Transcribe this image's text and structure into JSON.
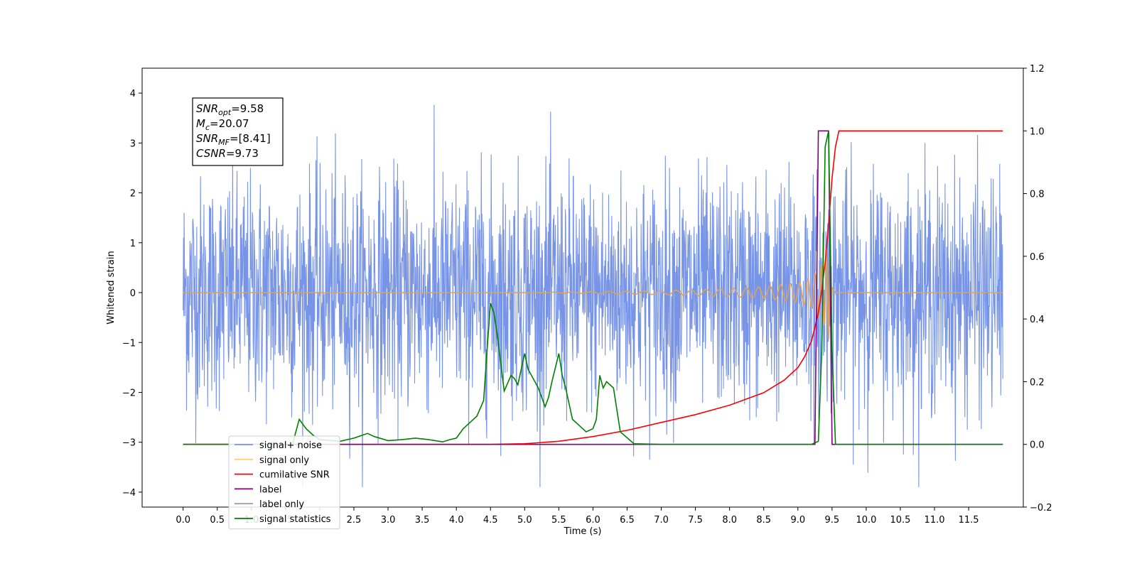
{
  "chart_data": {
    "type": "line",
    "xlabel": "Time (s)",
    "ylabel": "Whitened strain",
    "xlim": [
      -0.6,
      12.3
    ],
    "ylim_left": [
      -4.3,
      4.5
    ],
    "ylim_right": [
      -0.2,
      1.2
    ],
    "x_ticks": [
      "0.0",
      "0.5",
      "1.0",
      "1.5",
      "2.0",
      "2.5",
      "3.0",
      "3.5",
      "4.0",
      "4.5",
      "5.0",
      "5.5",
      "6.0",
      "6.5",
      "7.0",
      "7.5",
      "8.0",
      "8.5",
      "9.0",
      "9.5",
      "10.0",
      "10.5",
      "11.0",
      "11.5"
    ],
    "y_ticks_left": [
      "4",
      "3",
      "2",
      "1",
      "0",
      "−1",
      "−2",
      "−3",
      "−4"
    ],
    "y_ticks_right": [
      "1.2",
      "1.0",
      "0.8",
      "0.6",
      "0.4",
      "0.2",
      "0.0",
      "−0.2"
    ],
    "grid": false,
    "legend_position": "lower-left",
    "annotation": [
      {
        "base": "SNR",
        "sub": "opt",
        "rest": "=9.58"
      },
      {
        "base": "M",
        "sub": "c",
        "rest": "=20.07"
      },
      {
        "base": "SNR",
        "sub": "MF",
        "rest": "=[8.41]"
      },
      {
        "base": "CSNR",
        "sub": "",
        "rest": "=9.73"
      }
    ],
    "legend": [
      {
        "label": "signal+ noise",
        "color": "#7894e6"
      },
      {
        "label": "signal only",
        "color": "#ffcf7a"
      },
      {
        "label": "cumilative SNR",
        "color": "#ff0000"
      },
      {
        "label": "label",
        "color": "#800080"
      },
      {
        "label": "label only",
        "color": "#a0a0a0"
      },
      {
        "label": "signal statistics",
        "color": "#008000"
      }
    ],
    "series": [
      {
        "name": "signal+ noise",
        "axis": "left",
        "color": "#7894e6",
        "style": "noise",
        "x_range": [
          0.0,
          12.0
        ],
        "std": 1.0,
        "approx_range": [
          -3.9,
          4.1
        ]
      },
      {
        "name": "signal only",
        "axis": "left",
        "color": "#daa35a",
        "style": "chirp",
        "x_range": [
          0.0,
          12.0
        ],
        "merger_time": 9.5,
        "envelope": {
          "x": [
            0.0,
            5.0,
            6.0,
            7.0,
            8.0,
            8.5,
            9.0,
            9.2,
            9.3,
            9.4,
            9.45,
            9.5,
            9.55
          ],
          "y": [
            0.0,
            0.0,
            0.02,
            0.04,
            0.08,
            0.12,
            0.2,
            0.3,
            0.45,
            0.7,
            0.95,
            0.3,
            0.0
          ]
        }
      },
      {
        "name": "cumilative SNR",
        "axis": "right",
        "color": "#ff0000",
        "x": [
          0.0,
          4.5,
          5.0,
          5.5,
          6.0,
          6.5,
          7.0,
          7.5,
          8.0,
          8.5,
          8.8,
          9.0,
          9.1,
          9.2,
          9.3,
          9.35,
          9.4,
          9.45,
          9.5,
          9.55,
          9.6,
          12.0
        ],
        "y": [
          0.0,
          0.0,
          0.002,
          0.01,
          0.025,
          0.045,
          0.07,
          0.095,
          0.125,
          0.165,
          0.205,
          0.245,
          0.28,
          0.33,
          0.42,
          0.49,
          0.58,
          0.7,
          0.85,
          0.95,
          1.0,
          1.0
        ]
      },
      {
        "name": "label",
        "axis": "right",
        "color": "#800080",
        "x": [
          0.0,
          9.25,
          9.3,
          9.45,
          9.5,
          12.0
        ],
        "y": [
          0.0,
          0.0,
          1.0,
          1.0,
          0.0,
          0.0
        ]
      },
      {
        "name": "signal statistics",
        "axis": "right",
        "color": "#008000",
        "x": [
          0.0,
          1.6,
          1.7,
          1.8,
          1.9,
          2.0,
          2.3,
          2.5,
          2.7,
          2.8,
          3.0,
          3.2,
          3.4,
          3.6,
          3.8,
          3.9,
          4.0,
          4.1,
          4.2,
          4.3,
          4.4,
          4.45,
          4.5,
          4.55,
          4.6,
          4.7,
          4.8,
          4.85,
          4.9,
          5.0,
          5.05,
          5.1,
          5.15,
          5.2,
          5.3,
          5.35,
          5.4,
          5.5,
          5.55,
          5.6,
          5.7,
          5.8,
          5.9,
          6.0,
          6.05,
          6.1,
          6.15,
          6.2,
          6.3,
          6.4,
          6.6,
          7.0,
          9.2,
          9.3,
          9.35,
          9.4,
          9.45,
          9.5,
          9.55,
          12.0
        ],
        "y": [
          0.0,
          0.0,
          0.08,
          0.05,
          0.03,
          0.015,
          0.01,
          0.02,
          0.035,
          0.025,
          0.012,
          0.015,
          0.02,
          0.015,
          0.008,
          0.015,
          0.02,
          0.05,
          0.07,
          0.09,
          0.14,
          0.3,
          0.45,
          0.42,
          0.35,
          0.17,
          0.22,
          0.21,
          0.19,
          0.29,
          0.24,
          0.22,
          0.2,
          0.18,
          0.12,
          0.15,
          0.2,
          0.29,
          0.22,
          0.18,
          0.08,
          0.06,
          0.04,
          0.05,
          0.08,
          0.22,
          0.18,
          0.2,
          0.18,
          0.04,
          0.002,
          0.0,
          0.0,
          0.01,
          0.3,
          0.95,
          1.0,
          0.3,
          0.0,
          0.0
        ]
      }
    ]
  }
}
